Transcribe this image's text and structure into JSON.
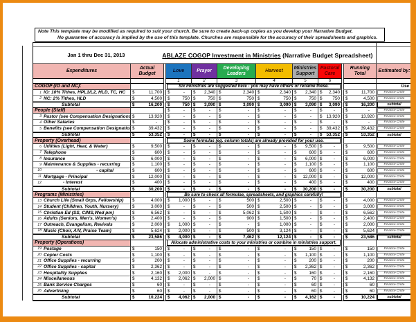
{
  "colors": {
    "frame_orange": "#EC8A12",
    "header_pink": "#F1B6B2",
    "grid_line": "#333333"
  },
  "note": {
    "line1": "Note   This template may be modified as required to suit your church.  Be sure to create back-up copies as you develop your Narrative Budget.",
    "line2": "No guarantee of accuracy is implied by the use of this template.   Churches are responsible for the accuracy of their spreadsheets and graphics."
  },
  "title": {
    "date_range": "Jan 1 thru Dec 31, 2013",
    "main": "ABLAZE COGOP  Investment in Ministries",
    "suffix": " (Narrative Budget Spreadsheet)"
  },
  "columns": {
    "expenditures": "Expenditures",
    "actual": "Actual Budget",
    "running": "Running Total",
    "estimated": "Estimated by:"
  },
  "ministries": [
    {
      "label": "Love",
      "num": "1",
      "bg": "#1C74BE",
      "fg": "#06102E"
    },
    {
      "label": "Prayer",
      "num": "2",
      "bg": "#7030A0",
      "fg": "#FFFFFF"
    },
    {
      "label": "Developing Leaders",
      "num": "3",
      "bg": "#28AB4F",
      "fg": "#FFFFFF"
    },
    {
      "label": "Harvest",
      "num": "4",
      "bg": "#F2BC00",
      "fg": "#3A2000"
    },
    {
      "label": "Ministries Support",
      "num": "5",
      "bg": "#ACACAC",
      "fg": "#111111"
    },
    {
      "label": "Pastoral Care",
      "num": "6",
      "bg": "#F90606",
      "fg": "#5A0000"
    }
  ],
  "rows": [
    {
      "t": "sec",
      "label": "COGOP (IO and NC):",
      "note": "Six ministries are suggested here - you may have others or rename these.",
      "est": "Use"
    },
    {
      "t": "item",
      "n": "1",
      "label": "IO: 10% Tithes, HPL1/L2, HLD, TC, HC",
      "vals": [
        "11,700",
        "-",
        "2,340",
        "2,340",
        "2,340",
        "2,340",
        "2,340",
        "11,700"
      ],
      "est": "Finance Cmte"
    },
    {
      "t": "item",
      "n": "2",
      "label": "NC: 2% Tithes, HLD",
      "vals": [
        "4,500",
        "750",
        "750",
        "750",
        "750",
        "750",
        "750",
        "4,500"
      ],
      "est": "Finance Cmte"
    },
    {
      "t": "sub",
      "label": "Subtotal",
      "vals": [
        "16,200",
        "750",
        "3,090",
        "3,090",
        "3,090",
        "3,090",
        "3,090",
        "16,200"
      ],
      "est": "subtotal"
    },
    {
      "t": "sec",
      "label": "People (Staff)",
      "vals": [
        "",
        "-",
        "-",
        "-",
        "-",
        "-",
        "-",
        "-"
      ],
      "est": "Finance Cmte"
    },
    {
      "t": "item",
      "n": "3",
      "label": "Pastor (see Compensation Designations)",
      "vals": [
        "13,920",
        "-",
        "-",
        "-",
        "-",
        "-",
        "13,920",
        "13,920"
      ],
      "est": "Finance Cmte"
    },
    {
      "t": "item",
      "n": "4",
      "label": "Other Salaries",
      "vals": [
        "-",
        "-",
        "-",
        "-",
        "-",
        "-",
        "-",
        "-"
      ],
      "est": "Finance Cmte"
    },
    {
      "t": "item",
      "n": "5",
      "label": "Benefits (see Compensation Designations)",
      "vals": [
        "39,432",
        "-",
        "-",
        "-",
        "-",
        "-",
        "39,432",
        "39,432"
      ],
      "est": "Finance Cmte"
    },
    {
      "t": "sub",
      "label": "Subtotal",
      "vals": [
        "53,352",
        "-",
        "-",
        "-",
        "-",
        "-",
        "53,352",
        "53,352"
      ],
      "est": "subtotal"
    },
    {
      "t": "sec",
      "label": "Property (Overhead)",
      "note": "Some formulas (eg. column totals) are already provided for your use.",
      "est": ""
    },
    {
      "t": "item",
      "n": "6",
      "label": "Utilities (Light, Heat, & Water)",
      "vals": [
        "9,500",
        "-",
        "-",
        "-",
        "-",
        "9,500",
        "-",
        "9,500"
      ],
      "est": "Finance Cmte"
    },
    {
      "t": "item",
      "n": "7",
      "label": "Telephone",
      "vals": [
        "600",
        "-",
        "-",
        "-",
        "-",
        "600",
        "-",
        "600"
      ],
      "est": "Finance Cmte"
    },
    {
      "t": "item",
      "n": "8",
      "label": "Insurance",
      "vals": [
        "6,000",
        "-",
        "-",
        "-",
        "-",
        "6,000",
        "-",
        "6,000"
      ],
      "est": "Finance Cmte"
    },
    {
      "t": "item",
      "n": "9",
      "label": "Maintenance & Supplies - recurring",
      "vals": [
        "1,100",
        "-",
        "-",
        "-",
        "-",
        "1,100",
        "-",
        "1,100"
      ],
      "est": "Finance Cmte"
    },
    {
      "t": "item",
      "n": "10",
      "label": "- capital",
      "align": "right",
      "vals": [
        "600",
        "-",
        "-",
        "-",
        "-",
        "600",
        "-",
        "600"
      ],
      "est": "Finance Cmte"
    },
    {
      "t": "item",
      "n": "11",
      "label": "Mortgage  - Principal",
      "vals": [
        "12,000",
        "-",
        "-",
        "-",
        "-",
        "12,000",
        "-",
        "12,000"
      ],
      "est": "Finance Cmte"
    },
    {
      "t": "item",
      "n": "12",
      "label": "- Interest",
      "indent": 28,
      "vals": [
        "400",
        "-",
        "-",
        "-",
        "-",
        "400",
        "-",
        "400"
      ],
      "est": "Finance Cmte"
    },
    {
      "t": "sub",
      "label": "Subtotal",
      "vals": [
        "30,200",
        "-",
        "-",
        "-",
        "-",
        "30,200",
        "-",
        "30,200"
      ],
      "est": "subtotal"
    },
    {
      "t": "sec",
      "label": "Programs (Ministries)",
      "note": "Be sure to check all formulae, spreadsheets, and graphics carefully!",
      "est": ""
    },
    {
      "t": "item",
      "n": "13",
      "label": "Church Life (Small Grps, Fellowship)",
      "vals": [
        "4,000",
        "1,000",
        "-",
        "500",
        "2,500",
        "-",
        "-",
        "4,000"
      ],
      "est": "Finance Cmte"
    },
    {
      "t": "item",
      "n": "14",
      "label": "Student (Children, Youth, Nursery)",
      "vals": [
        "3,000",
        "-",
        "-",
        "500",
        "2,500",
        "-",
        "-",
        "3,000"
      ],
      "est": "Finance Cmte"
    },
    {
      "t": "item",
      "n": "15",
      "label": "Christian Ed (SS, CIMS,Wed pm)",
      "vals": [
        "6,562",
        "-",
        "-",
        "5,062",
        "1,500",
        "-",
        "-",
        "6,562"
      ],
      "est": "Finance Cmte"
    },
    {
      "t": "item",
      "n": "16",
      "label": "Adults (Seniors, Men's, Women's)",
      "vals": [
        "2,400",
        "-",
        "-",
        "900",
        "1,500",
        "-",
        "-",
        "2,400"
      ],
      "est": "Finance Cmte"
    },
    {
      "t": "item",
      "n": "17",
      "label": "Outreach, Evangelism, Revivals",
      "vals": [
        "2,000",
        "1,000",
        "-",
        "-",
        "1,000",
        "-",
        "-",
        "2,000"
      ],
      "est": "Finance Cmte"
    },
    {
      "t": "item",
      "n": "18",
      "label": "Music (Choir, A/V, Praise Team)",
      "vals": [
        "5,624",
        "2,000",
        "-",
        "500",
        "3,124",
        "-",
        "-",
        "5,624"
      ],
      "est": "Finance Cmte"
    },
    {
      "t": "sub",
      "label": "Subtotal",
      "vals": [
        "23,586",
        "4,000",
        "-",
        "7,462",
        "12,124",
        "-",
        "-",
        "23,586"
      ],
      "est": "subtotal"
    },
    {
      "t": "sec",
      "label": "Property (Operations)",
      "note": "Allocate administrative costs to your ministries or combine in ministries support.",
      "est": ""
    },
    {
      "t": "item",
      "n": "19",
      "label": "Postage",
      "vals": [
        "150",
        "-",
        "-",
        "-",
        "-",
        "150",
        "-",
        "150"
      ],
      "est": "Finance Cmte"
    },
    {
      "t": "item",
      "n": "20",
      "label": "Copier Costs",
      "vals": [
        "1,100",
        "-",
        "-",
        "-",
        "-",
        "1,100",
        "-",
        "1,100"
      ],
      "est": "Finance Cmte"
    },
    {
      "t": "item",
      "n": "21",
      "label": "Office Supplies - recurring",
      "vals": [
        "200",
        "-",
        "-",
        "-",
        "-",
        "200",
        "-",
        "200"
      ],
      "est": "Finance Cmte"
    },
    {
      "t": "item",
      "n": "22",
      "label": "Office Supplies - capital",
      "vals": [
        "2,362",
        "-",
        "-",
        "-",
        "-",
        "2,362",
        "-",
        "2,362"
      ],
      "est": "Finance Cmte"
    },
    {
      "t": "item",
      "n": "23",
      "label": "Hospitality Supplies",
      "vals": [
        "2,160",
        "2,000",
        "-",
        "-",
        "-",
        "160",
        "-",
        "2,160"
      ],
      "est": "Finance Cmte"
    },
    {
      "t": "item",
      "n": "24",
      "label": "Miscellaneous",
      "vals": [
        "4,132",
        "2,062",
        "2,000",
        "-",
        "-",
        "70",
        "-",
        "4,132"
      ],
      "est": "Finance Cmte"
    },
    {
      "t": "item",
      "n": "25",
      "label": "Bank Service Charges",
      "vals": [
        "60",
        "-",
        "-",
        "-",
        "-",
        "60",
        "-",
        "60"
      ],
      "est": "Finance Cmte"
    },
    {
      "t": "item",
      "n": "26",
      "label": "Advertising",
      "vals": [
        "60",
        "-",
        "-",
        "-",
        "-",
        "60",
        "-",
        "60"
      ],
      "est": "Finance Cmte"
    },
    {
      "t": "sub",
      "label": "Subtotal",
      "vals": [
        "10,224",
        "4,062",
        "2,000",
        "-",
        "-",
        "4,162",
        "-",
        "10,224"
      ],
      "est": "subtotal"
    }
  ]
}
